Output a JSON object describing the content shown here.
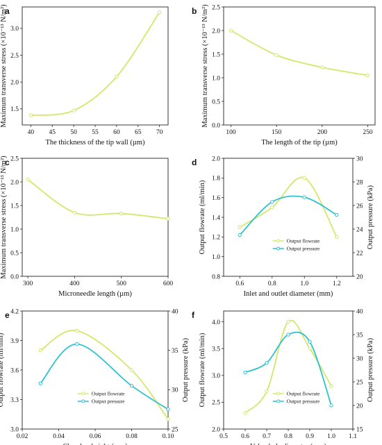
{
  "colors": {
    "flowrate": "#d6e66a",
    "pressure": "#2cc2cf",
    "single": "#d6e66a"
  },
  "panels": [
    {
      "id": "a",
      "letter": "a",
      "type": "line",
      "xlabel": "The thickness of the tip wall (µm)",
      "ylabel": "Maximum transverse stress (×10⁻¹³ N/m²)",
      "xlim": [
        38,
        72
      ],
      "ylim": [
        1.2,
        3.4
      ],
      "xticks": [
        "40",
        "45",
        "50",
        "55",
        "60",
        "65",
        "70"
      ],
      "xtick_values": [
        40,
        45,
        50,
        55,
        60,
        65,
        70
      ],
      "yticks": [
        "1.5",
        "2.0",
        "2.5",
        "3.0"
      ],
      "ytick_values": [
        1.5,
        2.0,
        2.5,
        3.0
      ],
      "series": [
        {
          "x": [
            40,
            50,
            60,
            70
          ],
          "y": [
            1.38,
            1.47,
            2.1,
            3.3
          ],
          "color_key": "single"
        }
      ]
    },
    {
      "id": "b",
      "letter": "b",
      "type": "line",
      "xlabel": "The length of the tip (µm)",
      "ylabel": "Maximum transverse stress (×10⁻¹³ N/m²)",
      "xlim": [
        92,
        258
      ],
      "ylim": [
        0.0,
        2.5
      ],
      "xticks": [
        "100",
        "150",
        "200",
        "250"
      ],
      "xtick_values": [
        100,
        150,
        200,
        250
      ],
      "yticks": [
        "0.0",
        "0.5",
        "1.0",
        "1.5",
        "2.0",
        "2.5"
      ],
      "ytick_values": [
        0,
        0.5,
        1.0,
        1.5,
        2.0,
        2.5
      ],
      "series": [
        {
          "x": [
            100,
            150,
            200,
            250
          ],
          "y": [
            2.0,
            1.48,
            1.22,
            1.05
          ],
          "color_key": "single"
        }
      ]
    },
    {
      "id": "c",
      "letter": "c",
      "type": "line",
      "xlabel": "Microneedle length (µm)",
      "ylabel": "Maximum transverse stress (×10⁻¹³ N/m²)",
      "xlim": [
        288,
        600
      ],
      "ylim": [
        0.0,
        2.5
      ],
      "xticks": [
        "300",
        "400",
        "500",
        "600"
      ],
      "xtick_values": [
        300,
        400,
        500,
        600
      ],
      "yticks": [
        "0.0",
        "0.5",
        "1.0",
        "1.5",
        "2.0",
        "2.5"
      ],
      "ytick_values": [
        0,
        0.5,
        1.0,
        1.5,
        2.0,
        2.5
      ],
      "series": [
        {
          "x": [
            300,
            400,
            500,
            600
          ],
          "y": [
            2.05,
            1.35,
            1.33,
            1.22
          ],
          "color_key": "single"
        }
      ]
    },
    {
      "id": "d",
      "letter": "d",
      "type": "line",
      "xlabel": "Inlet and outlet diameter (mm)",
      "ylabel": "Output flowrate (ml/min)",
      "y2label": "Output pressure (kPa)",
      "xlim": [
        0.5,
        1.3
      ],
      "ylim": [
        0.8,
        2.0
      ],
      "y2lim": [
        20,
        30
      ],
      "xticks": [
        "0.6",
        "0.8",
        "1.0",
        "1.2"
      ],
      "xtick_values": [
        0.6,
        0.8,
        1.0,
        1.2
      ],
      "yticks": [
        "0.8",
        "1.0",
        "1.2",
        "1.4",
        "1.6",
        "1.8",
        "2.0"
      ],
      "ytick_values": [
        0.8,
        1.0,
        1.2,
        1.4,
        1.6,
        1.8,
        2.0
      ],
      "y2ticks": [
        "20",
        "22",
        "24",
        "26",
        "28",
        "30"
      ],
      "y2tick_values": [
        20,
        22,
        24,
        26,
        28,
        30
      ],
      "legend": [
        "Output flowrate",
        "Output pressure"
      ],
      "legend_pos": "lower-center",
      "series": [
        {
          "name": "Output flowrate",
          "x": [
            0.6,
            0.8,
            1.0,
            1.2
          ],
          "y": [
            1.3,
            1.5,
            1.8,
            1.2
          ],
          "axis": "left",
          "color_key": "flowrate"
        },
        {
          "name": "Output pressure",
          "x": [
            0.6,
            0.8,
            1.0,
            1.2
          ],
          "y": [
            23.5,
            26.3,
            26.7,
            25.2
          ],
          "axis": "right",
          "color_key": "pressure"
        }
      ]
    },
    {
      "id": "e",
      "letter": "e",
      "type": "line",
      "xlabel": "Chamber height (mm)",
      "ylabel": "Output flowrate (ml/min)",
      "y2label": "Output pressure (kPa)",
      "xlim": [
        0.02,
        0.1
      ],
      "ylim": [
        3.0,
        4.2
      ],
      "y2lim": [
        25,
        40
      ],
      "xticks": [
        "0.02",
        "0.04",
        "0.06",
        "0.08",
        "0.10"
      ],
      "xtick_values": [
        0.02,
        0.04,
        0.06,
        0.08,
        0.1
      ],
      "yticks": [
        "3.0",
        "3.3",
        "3.6",
        "3.9",
        "4.2"
      ],
      "ytick_values": [
        3.0,
        3.3,
        3.6,
        3.9,
        4.2
      ],
      "y2ticks": [
        "25",
        "30",
        "35",
        "40"
      ],
      "y2tick_values": [
        25,
        30,
        35,
        40
      ],
      "legend": [
        "Output flowrate",
        "Output pressure"
      ],
      "legend_pos": "lower-center",
      "series": [
        {
          "name": "Output flowrate",
          "x": [
            0.03,
            0.05,
            0.08,
            0.1
          ],
          "y": [
            3.8,
            4.0,
            3.6,
            3.1
          ],
          "axis": "left",
          "color_key": "flowrate"
        },
        {
          "name": "Output pressure",
          "x": [
            0.03,
            0.05,
            0.08,
            0.1
          ],
          "y": [
            30.8,
            35.8,
            30.5,
            27.5
          ],
          "axis": "right",
          "color_key": "pressure"
        }
      ]
    },
    {
      "id": "f",
      "letter": "f",
      "type": "line",
      "xlabel": "Valve hole diameter (mm)",
      "ylabel": "Output flowrate (ml/min)",
      "y2label": "Output pressure (kPa)",
      "xlim": [
        0.5,
        1.1
      ],
      "ylim": [
        2.0,
        4.2
      ],
      "y2lim": [
        15,
        40
      ],
      "xticks": [
        "0.5",
        "0.6",
        "0.7",
        "0.8",
        "0.9",
        "1.0",
        "1.1"
      ],
      "xtick_values": [
        0.5,
        0.6,
        0.7,
        0.8,
        0.9,
        1.0,
        1.1
      ],
      "yticks": [
        "2.0",
        "2.5",
        "3.0",
        "3.5",
        "4.0"
      ],
      "ytick_values": [
        2.0,
        2.5,
        3.0,
        3.5,
        4.0
      ],
      "y2ticks": [
        "15",
        "20",
        "25",
        "30",
        "35",
        "40"
      ],
      "y2tick_values": [
        15,
        20,
        25,
        30,
        35,
        40
      ],
      "legend": [
        "Output flowrate",
        "Output pressure"
      ],
      "legend_pos": "lower-center",
      "series": [
        {
          "name": "Output flowrate",
          "x": [
            0.6,
            0.7,
            0.8,
            0.9,
            1.0
          ],
          "y": [
            2.3,
            2.7,
            4.0,
            3.5,
            2.8
          ],
          "axis": "left",
          "color_key": "flowrate"
        },
        {
          "name": "Output pressure",
          "x": [
            0.6,
            0.7,
            0.8,
            0.9,
            1.0
          ],
          "y": [
            27.0,
            29.0,
            35.0,
            33.5,
            20.0
          ],
          "axis": "right",
          "color_key": "pressure"
        }
      ]
    }
  ]
}
